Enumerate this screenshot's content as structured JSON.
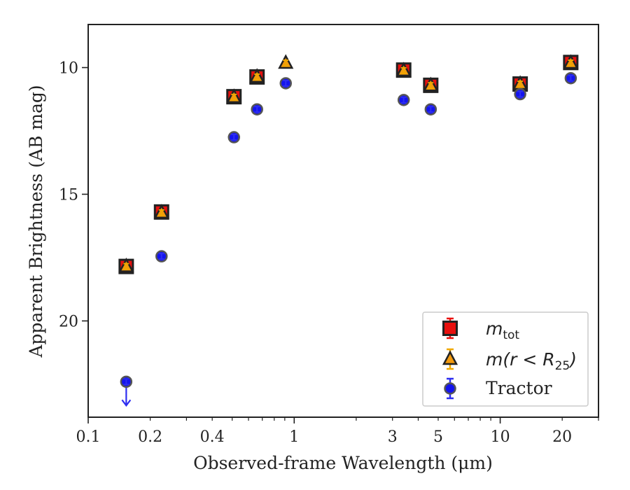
{
  "chart_data": {
    "type": "scatter",
    "xscale": "log",
    "yaxis_inverted": true,
    "xlim": [
      0.1,
      30
    ],
    "ylim": [
      23.8,
      8.3
    ],
    "xlabel": "Observed-frame Wavelength (μm)",
    "ylabel": "Apparent Brightness (AB mag)",
    "x_ticks": [
      {
        "value": 0.1,
        "label": "0.1"
      },
      {
        "value": 0.2,
        "label": "0.2"
      },
      {
        "value": 0.4,
        "label": "0.4"
      },
      {
        "value": 1,
        "label": "1"
      },
      {
        "value": 3,
        "label": "3"
      },
      {
        "value": 5,
        "label": "5"
      },
      {
        "value": 10,
        "label": "10"
      },
      {
        "value": 20,
        "label": "20"
      }
    ],
    "y_ticks": [
      {
        "value": 10,
        "label": "10"
      },
      {
        "value": 15,
        "label": "15"
      },
      {
        "value": 20,
        "label": "20"
      }
    ],
    "grid": false,
    "legend_position": "bottom-right",
    "series": [
      {
        "name": "m_tot",
        "marker": "square",
        "color": "#e8100e",
        "edge_color": "#222222",
        "errorbar_color": "#e8100e",
        "points": [
          {
            "x": 0.153,
            "y": 17.85
          },
          {
            "x": 0.227,
            "y": 15.7
          },
          {
            "x": 0.51,
            "y": 11.15
          },
          {
            "x": 0.66,
            "y": 10.37
          },
          {
            "x": 3.4,
            "y": 10.1
          },
          {
            "x": 4.6,
            "y": 10.7
          },
          {
            "x": 12.5,
            "y": 10.65
          },
          {
            "x": 22,
            "y": 9.8
          }
        ]
      },
      {
        "name": "m(r < R25)",
        "marker": "triangle",
        "color": "#f39a0e",
        "edge_color": "#222222",
        "errorbar_color": "#f0a800",
        "points": [
          {
            "x": 0.153,
            "y": 17.85
          },
          {
            "x": 0.227,
            "y": 15.73
          },
          {
            "x": 0.51,
            "y": 11.17
          },
          {
            "x": 0.66,
            "y": 10.37
          },
          {
            "x": 0.91,
            "y": 9.82
          },
          {
            "x": 3.4,
            "y": 10.12
          },
          {
            "x": 4.6,
            "y": 10.71
          },
          {
            "x": 12.5,
            "y": 10.65
          },
          {
            "x": 22,
            "y": 9.82
          }
        ]
      },
      {
        "name": "Tractor",
        "marker": "circle",
        "color": "#1414ee",
        "edge_color": "#555555",
        "errorbar_color": "#2e2ef0",
        "points": [
          {
            "x": 0.153,
            "y": 22.4,
            "upper_limit": true
          },
          {
            "x": 0.227,
            "y": 17.45
          },
          {
            "x": 0.51,
            "y": 12.75
          },
          {
            "x": 0.66,
            "y": 11.65
          },
          {
            "x": 0.91,
            "y": 10.62
          },
          {
            "x": 3.4,
            "y": 11.28
          },
          {
            "x": 4.6,
            "y": 11.65
          },
          {
            "x": 12.5,
            "y": 11.05
          },
          {
            "x": 22,
            "y": 10.42
          }
        ]
      }
    ]
  }
}
